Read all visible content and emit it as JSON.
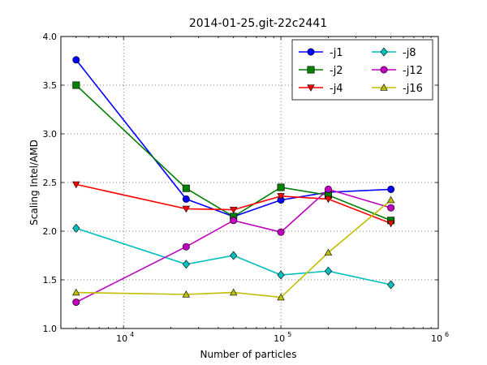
{
  "chart_data": {
    "type": "line",
    "title": "2014-01-25.git-22c2441",
    "xlabel": "Number of particles",
    "ylabel": "Scaling Intel/AMD",
    "xscale": "log",
    "xlim": [
      4000,
      1000000
    ],
    "ylim": [
      1.0,
      4.0
    ],
    "yticks": [
      "1.0",
      "1.5",
      "2.0",
      "2.5",
      "3.0",
      "3.5",
      "4.0"
    ],
    "xticks": [
      {
        "value": 10000,
        "base": "10",
        "exp": "4"
      },
      {
        "value": 100000,
        "base": "10",
        "exp": "5"
      },
      {
        "value": 1000000,
        "base": "10",
        "exp": "6"
      }
    ],
    "grid": true,
    "legend_position": "top-right",
    "x": [
      5000,
      25000,
      50000,
      100000,
      200000,
      500000
    ],
    "series": [
      {
        "name": "-j1",
        "color": "#0000ff",
        "marker": "circle",
        "values": [
          3.76,
          2.33,
          2.15,
          2.32,
          2.4,
          2.43
        ]
      },
      {
        "name": "-j2",
        "color": "#008000",
        "marker": "square",
        "values": [
          3.5,
          2.44,
          2.15,
          2.45,
          2.37,
          2.11
        ]
      },
      {
        "name": "-j4",
        "color": "#ff0000",
        "marker": "triangle-down",
        "values": [
          2.48,
          2.23,
          2.22,
          2.36,
          2.33,
          2.08
        ]
      },
      {
        "name": "-j8",
        "color": "#00bfbf",
        "marker": "diamond",
        "values": [
          2.03,
          1.66,
          1.75,
          1.55,
          1.59,
          1.45
        ]
      },
      {
        "name": "-j12",
        "color": "#bf00bf",
        "marker": "circle",
        "values": [
          1.27,
          1.84,
          2.11,
          1.99,
          2.43,
          2.24
        ]
      },
      {
        "name": "-j16",
        "color": "#bfbf00",
        "marker": "triangle-up",
        "values": [
          1.37,
          1.35,
          1.37,
          1.32,
          1.78,
          2.32
        ]
      }
    ]
  }
}
